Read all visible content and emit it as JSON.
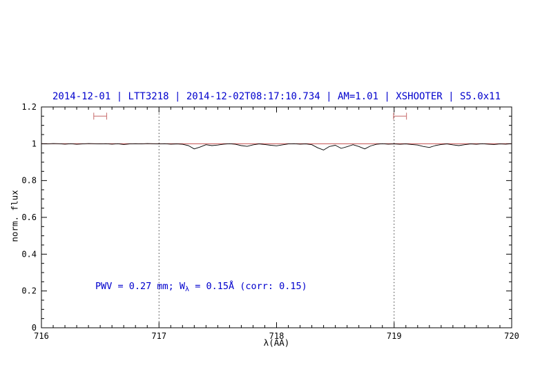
{
  "title": "2014-12-01 | LTT3218 | 2014-12-02T08:17:10.734 | AM=1.01 | XSHOOTER | S5.0x11",
  "annotation": {
    "part1": "PWV = 0.27 mm; W",
    "subscript": "λ",
    "part2": " = 0.15Å (corr: 0.15)"
  },
  "colors": {
    "title": "#0000cd",
    "annotation": "#0000cd",
    "background": "#ffffff"
  },
  "chart_data": {
    "type": "line",
    "title": "2014-12-01 | LTT3218 | 2014-12-02T08:17:10.734 | AM=1.01 | XSHOOTER | S5.0x11",
    "xlabel": "λ(AA)",
    "ylabel": "norm. flux",
    "xlim": [
      716,
      720
    ],
    "ylim": [
      0,
      1.2
    ],
    "xticks": [
      716,
      717,
      718,
      719,
      720
    ],
    "xtick_labels": [
      "716",
      "717",
      "718",
      "719",
      "720"
    ],
    "x_minor_step": 0.1,
    "yticks": [
      0,
      0.2,
      0.4,
      0.6,
      0.8,
      1,
      1.2
    ],
    "ytick_labels": [
      "0",
      "0.2",
      "0.4",
      "0.6",
      "0.8",
      "1",
      "1.2"
    ],
    "y_minor_step": 0.05,
    "grid": false,
    "legend": "none",
    "vlines": [
      717,
      719
    ],
    "vline_style": "dotted",
    "markers": [
      {
        "x": 716.5,
        "y": 1.15,
        "halfwidth": 0.055
      },
      {
        "x": 719.05,
        "y": 1.15,
        "halfwidth": 0.055
      }
    ],
    "colors": {
      "observed": "#000000",
      "model": "#bb3333",
      "marker": "#cc7777",
      "vline": "#222222",
      "frame": "#000000"
    },
    "series": [
      {
        "name": "observed spectrum",
        "type": "line",
        "x_start": 716.0,
        "x_step": 0.05,
        "y": [
          1.0,
          0.999,
          1.001,
          1.0,
          0.998,
          1.0,
          0.997,
          0.999,
          1.001,
          1.0,
          0.999,
          1.0,
          0.998,
          1.0,
          0.996,
          0.999,
          1.0,
          0.999,
          1.001,
          1.0,
          0.999,
          1.0,
          0.998,
          0.999,
          0.997,
          0.99,
          0.972,
          0.982,
          0.995,
          0.99,
          0.993,
          0.998,
          1.0,
          0.997,
          0.99,
          0.986,
          0.994,
          0.999,
          0.996,
          0.992,
          0.989,
          0.994,
          0.999,
          1.0,
          0.998,
          0.999,
          0.995,
          0.978,
          0.966,
          0.985,
          0.992,
          0.975,
          0.984,
          0.995,
          0.985,
          0.972,
          0.988,
          0.997,
          1.0,
          0.998,
          0.999,
          0.997,
          0.999,
          0.996,
          0.993,
          0.985,
          0.98,
          0.99,
          0.996,
          0.999,
          0.994,
          0.99,
          0.995,
          0.999,
          0.997,
          1.0,
          0.998,
          0.996,
          0.999,
          0.998,
          1.0
        ]
      },
      {
        "name": "model continuum",
        "type": "line",
        "x": [
          716,
          720
        ],
        "y": [
          1.0,
          1.0
        ]
      }
    ]
  }
}
